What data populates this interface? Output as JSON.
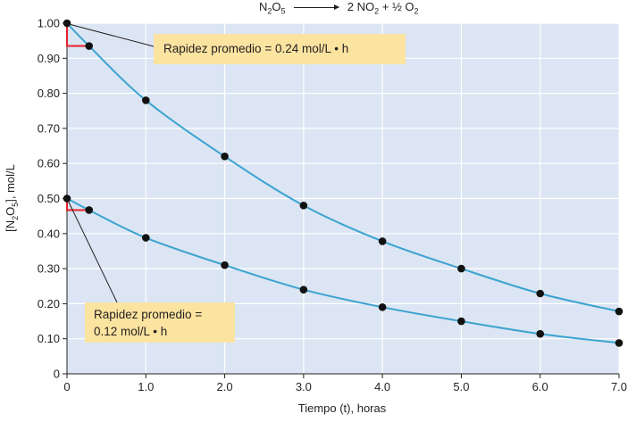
{
  "equation": {
    "reactant": "N",
    "reactant_sub1": "2",
    "reactant_o": "O",
    "reactant_sub2": "5",
    "products_part1": "2 NO",
    "products_sub": "2",
    "products_part2": " + ½ O",
    "products_sub2": "2"
  },
  "callouts": {
    "top": "Rapidez promedio = 0.24 mol/L • h",
    "bottom_line1": "Rapidez promedio =",
    "bottom_line2": "0.12 mol/L • h"
  },
  "colors": {
    "plot_bg": "#dbe5f3",
    "grid": "#ffffff",
    "curve": "#3ba3d0",
    "point": "#111111",
    "tangent": "#e8202a",
    "callout_bg": "#fbe3a0"
  },
  "chart_data": {
    "type": "line",
    "title": "",
    "xlabel": "Tiempo (t), horas",
    "ylabel": "[N2O5], mol/L",
    "xlim": [
      0,
      7
    ],
    "ylim": [
      0,
      1
    ],
    "x_ticks": [
      "0",
      "1.0",
      "2.0",
      "3.0",
      "4.0",
      "5.0",
      "6.0",
      "7.0"
    ],
    "y_ticks": [
      "0",
      "0.10",
      "0.20",
      "0.30",
      "0.40",
      "0.50",
      "0.60",
      "0.70",
      "0.80",
      "0.90",
      "1.00"
    ],
    "grid": true,
    "series": [
      {
        "x": [
          0,
          0.28,
          1,
          2,
          3,
          4,
          5,
          6,
          7
        ],
        "y": [
          1.0,
          0.935,
          0.78,
          0.62,
          0.48,
          0.378,
          0.3,
          0.229,
          0.178
        ]
      },
      {
        "x": [
          0,
          0.28,
          1,
          2,
          3,
          4,
          5,
          6,
          7
        ],
        "y": [
          0.5,
          0.467,
          0.388,
          0.31,
          0.24,
          0.19,
          0.15,
          0.114,
          0.088
        ]
      }
    ],
    "tangent_steps": [
      {
        "x0": 0,
        "y0": 1.0,
        "x1": 0.28,
        "y1": 0.935
      },
      {
        "x0": 0,
        "y0": 0.5,
        "x1": 0.28,
        "y1": 0.467
      }
    ]
  }
}
